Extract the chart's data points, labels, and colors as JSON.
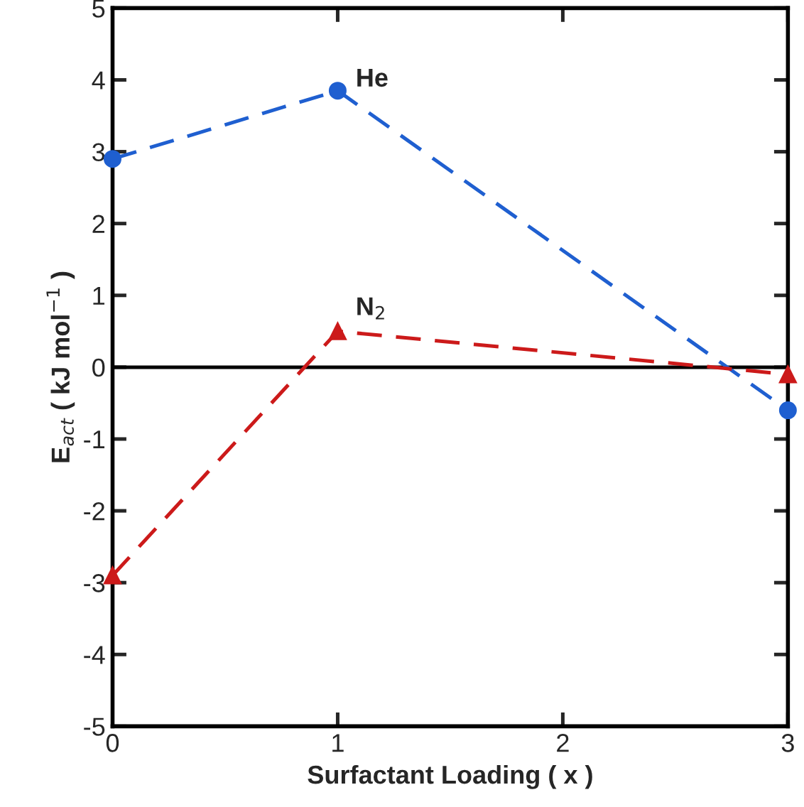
{
  "chart_data": {
    "type": "line",
    "xlabel": "Surfactant Loading ( x )",
    "ylabel": "E$_{act}$ ( kJ mol$^{−1}$ )",
    "x": [
      0,
      1,
      3
    ],
    "series": [
      {
        "name": "He",
        "color": "#1f5fd0",
        "values": [
          2.9,
          3.85,
          -0.6
        ],
        "marker": "circle"
      },
      {
        "name": "N$_{2}$",
        "color": "#cc1a1a",
        "values": [
          -2.9,
          0.5,
          -0.1
        ],
        "marker": "triangle"
      }
    ],
    "xlim": [
      0,
      3
    ],
    "xticks": [
      0,
      1,
      2,
      3
    ],
    "ylim": [
      -5,
      5
    ],
    "yticks": [
      -5,
      -4,
      -3,
      -2,
      -1,
      0,
      1,
      2,
      3,
      4,
      5
    ],
    "ref_lines": [
      {
        "axis": "y",
        "value": 0,
        "color": "#000000",
        "line_style": "solid"
      }
    ],
    "line_style": "dashed",
    "grid": false,
    "legend": false
  }
}
